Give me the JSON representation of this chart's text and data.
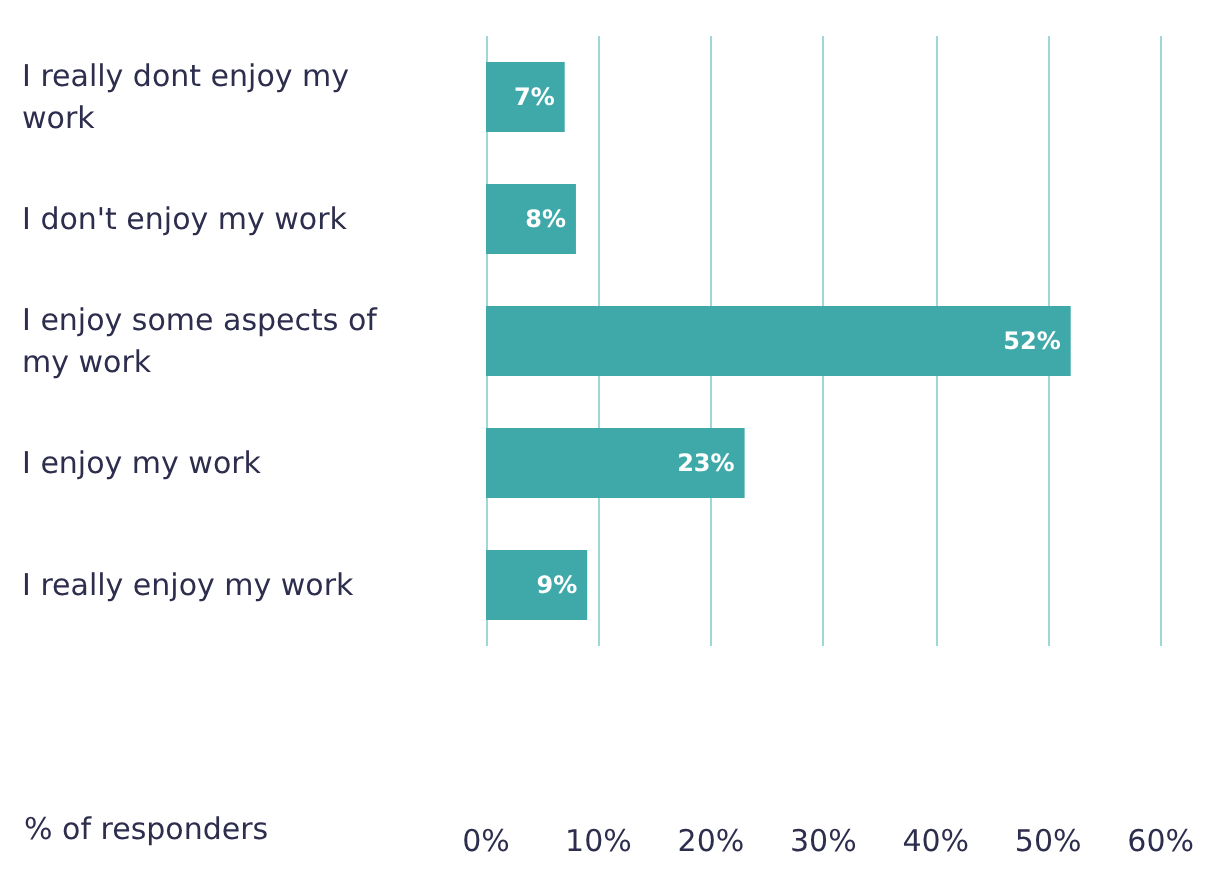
{
  "chart_data": {
    "type": "bar",
    "orientation": "horizontal",
    "xlabel": "% of responders",
    "categories": [
      "I really dont enjoy my work",
      "I don't enjoy my work",
      "I enjoy some aspects of my work",
      "I enjoy my work",
      "I really enjoy my work"
    ],
    "values": [
      7,
      8,
      52,
      23,
      9
    ],
    "value_labels": [
      "7%",
      "8%",
      "52%",
      "23%",
      "9%"
    ],
    "color": "#3fa9a9",
    "xlim": [
      0,
      60
    ],
    "xticks": [
      {
        "value": 0,
        "label": "0%"
      },
      {
        "value": 10,
        "label": "10%"
      },
      {
        "value": 20,
        "label": "20%"
      },
      {
        "value": 30,
        "label": "30%"
      },
      {
        "value": 40,
        "label": "40%"
      },
      {
        "value": 50,
        "label": "50%"
      },
      {
        "value": 60,
        "label": "60%"
      }
    ],
    "grid": "x"
  }
}
